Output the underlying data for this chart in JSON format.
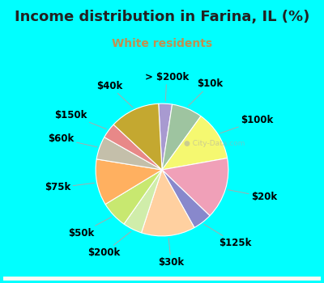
{
  "title": "Income distribution in Farina, IL (%)",
  "subtitle": "White residents",
  "bg_color": "#00FFFF",
  "subtitle_color": "#c09050",
  "title_color": "#222222",
  "watermark": "City-Data.com",
  "labels": [
    "> $200k",
    "$10k",
    "$100k",
    "$20k",
    "$125k",
    "$30k",
    "$200k",
    "$50k",
    "$75k",
    "$60k",
    "$150k",
    "$40k"
  ],
  "values": [
    3.5,
    8.0,
    13.0,
    16.0,
    5.0,
    14.0,
    5.0,
    7.0,
    12.0,
    6.0,
    4.0,
    13.0
  ],
  "colors": [
    "#a89ad0",
    "#9ec4a0",
    "#f5f870",
    "#f0a0b8",
    "#8888cc",
    "#ffd0a0",
    "#d0edaa",
    "#c8e870",
    "#ffb060",
    "#c4bfaa",
    "#e88888",
    "#c4a830"
  ],
  "startangle": 93,
  "label_fontsize": 8.5,
  "title_fontsize": 13,
  "subtitle_fontsize": 10
}
